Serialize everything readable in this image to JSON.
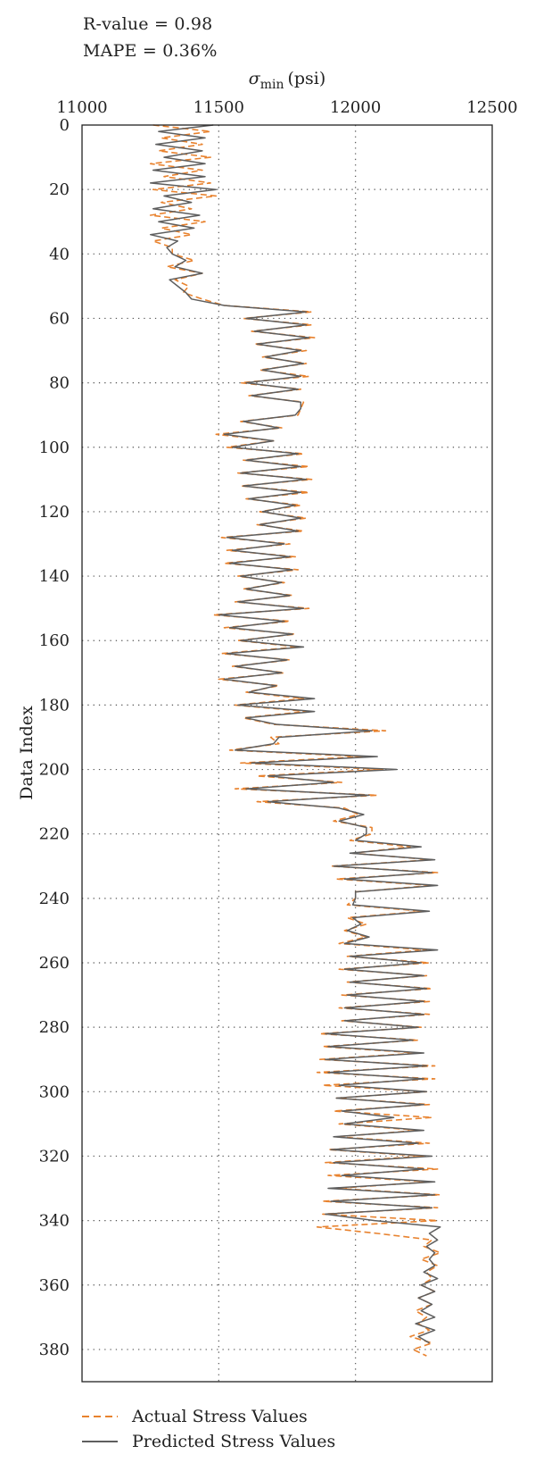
{
  "stats": {
    "r_value": "R-value = 0.98",
    "mape": "MAPE = 0.36%"
  },
  "legend": {
    "actual": "Actual Stress Values",
    "predicted": "Predicted Stress Values"
  },
  "colors": {
    "actual": "#e8822e",
    "predicted": "#5e5e5e",
    "grid": "#555555",
    "frame": "#222222"
  },
  "chart_data": {
    "type": "line",
    "orientation": "vertical-depth",
    "xlabel": {
      "symbol": "σ",
      "subscript": "min",
      "unit": "(psi)"
    },
    "ylabel": "Data Index",
    "xlim": [
      11000,
      12500
    ],
    "ylim": [
      0,
      390
    ],
    "x_axis_position": "top",
    "y_reversed": true,
    "x_ticks": [
      11000,
      11500,
      12000,
      12500
    ],
    "y_ticks": [
      0,
      20,
      40,
      60,
      80,
      100,
      120,
      140,
      160,
      180,
      200,
      220,
      240,
      260,
      280,
      300,
      320,
      340,
      360,
      380
    ],
    "grid": "dotted",
    "legend_position": "bottom-left",
    "series": [
      {
        "name": "Actual Stress Values",
        "style": "dashed",
        "index": [
          0,
          2,
          4,
          6,
          8,
          10,
          12,
          14,
          16,
          18,
          20,
          22,
          24,
          26,
          28,
          30,
          32,
          34,
          36,
          38,
          40,
          42,
          44,
          46,
          48,
          50,
          52,
          54,
          56,
          58,
          60,
          62,
          64,
          66,
          68,
          70,
          72,
          74,
          76,
          78,
          80,
          82,
          84,
          86,
          88,
          90,
          92,
          94,
          96,
          98,
          100,
          102,
          104,
          106,
          108,
          110,
          112,
          114,
          116,
          118,
          120,
          122,
          124,
          126,
          128,
          130,
          132,
          134,
          136,
          138,
          140,
          142,
          144,
          146,
          148,
          150,
          152,
          154,
          156,
          158,
          160,
          162,
          164,
          166,
          168,
          170,
          172,
          174,
          176,
          178,
          180,
          182,
          184,
          186,
          188,
          190,
          192,
          194,
          196,
          198,
          200,
          202,
          204,
          206,
          208,
          210,
          212,
          214,
          216,
          218,
          220,
          222,
          224,
          226,
          228,
          230,
          232,
          234,
          236,
          238,
          240,
          242,
          244,
          246,
          248,
          250,
          252,
          254,
          256,
          258,
          260,
          262,
          264,
          266,
          268,
          270,
          272,
          274,
          276,
          278,
          280,
          282,
          284,
          286,
          288,
          290,
          292,
          294,
          296,
          298,
          300,
          302,
          304,
          306,
          308,
          310,
          312,
          314,
          316,
          318,
          320,
          322,
          324,
          326,
          328,
          330,
          332,
          334,
          336,
          338,
          340,
          342,
          344,
          346,
          348,
          350,
          352,
          354,
          356,
          358,
          360,
          362,
          364,
          366,
          368,
          370,
          372,
          374,
          376,
          378,
          380,
          382,
          384,
          386
        ],
        "values": [
          11260,
          11470,
          11290,
          11440,
          11280,
          11470,
          11250,
          11440,
          11300,
          11470,
          11260,
          11490,
          11290,
          11400,
          11250,
          11450,
          11290,
          11400,
          11260,
          11330,
          11330,
          11410,
          11310,
          11440,
          11340,
          11390,
          11370,
          11440,
          11520,
          11840,
          11590,
          11840,
          11620,
          11850,
          11630,
          11820,
          11660,
          11820,
          11650,
          11830,
          11580,
          11800,
          11610,
          11810,
          11800,
          11790,
          11580,
          11730,
          11490,
          11700,
          11530,
          11810,
          11590,
          11830,
          11570,
          11840,
          11580,
          11830,
          11600,
          11800,
          11650,
          11820,
          11640,
          11810,
          11510,
          11760,
          11530,
          11780,
          11520,
          11790,
          11570,
          11740,
          11590,
          11770,
          11560,
          11830,
          11480,
          11760,
          11520,
          11780,
          11570,
          11790,
          11510,
          11760,
          11550,
          11740,
          11500,
          11720,
          11600,
          11810,
          11560,
          11820,
          11590,
          11700,
          12110,
          11690,
          11720,
          11540,
          12030,
          11580,
          12100,
          11640,
          11950,
          11560,
          12080,
          11640,
          11960,
          12010,
          11920,
          12060,
          12060,
          11980,
          12200,
          11990,
          12280,
          11910,
          12300,
          11930,
          12280,
          12000,
          12000,
          11970,
          12250,
          11970,
          12040,
          11960,
          12040,
          11940,
          12260,
          11970,
          12270,
          11940,
          12260,
          11970,
          12280,
          11950,
          12270,
          11940,
          12270,
          11950,
          12240,
          11870,
          12230,
          11880,
          12230,
          11870,
          12290,
          11860,
          12290,
          11880,
          12260,
          11930,
          12270,
          11920,
          12280,
          11940,
          12230,
          11930,
          12270,
          11900,
          12250,
          11890,
          12300,
          11900,
          12270,
          11930,
          12310,
          11880,
          12300,
          11880,
          12300,
          11860,
          12080,
          12280,
          12250,
          12310,
          12240,
          12300,
          12260,
          12280,
          12240,
          12290,
          12230,
          12280,
          12220,
          12260,
          12230,
          12270,
          12200,
          12280,
          12210,
          12260
        ]
      },
      {
        "name": "Predicted Stress Values",
        "style": "solid",
        "index": [
          0,
          2,
          4,
          6,
          8,
          10,
          12,
          14,
          16,
          18,
          20,
          22,
          24,
          26,
          28,
          30,
          32,
          34,
          36,
          38,
          40,
          42,
          44,
          46,
          48,
          50,
          52,
          54,
          56,
          58,
          60,
          62,
          64,
          66,
          68,
          70,
          72,
          74,
          76,
          78,
          80,
          82,
          84,
          86,
          88,
          90,
          92,
          94,
          96,
          98,
          100,
          102,
          104,
          106,
          108,
          110,
          112,
          114,
          116,
          118,
          120,
          122,
          124,
          126,
          128,
          130,
          132,
          134,
          136,
          138,
          140,
          142,
          144,
          146,
          148,
          150,
          152,
          154,
          156,
          158,
          160,
          162,
          164,
          166,
          168,
          170,
          172,
          174,
          176,
          178,
          180,
          182,
          184,
          186,
          188,
          190,
          192,
          194,
          196,
          198,
          200,
          202,
          204,
          206,
          208,
          210,
          212,
          214,
          216,
          218,
          220,
          222,
          224,
          226,
          228,
          230,
          232,
          234,
          236,
          238,
          240,
          242,
          244,
          246,
          248,
          250,
          252,
          254,
          256,
          258,
          260,
          262,
          264,
          266,
          268,
          270,
          272,
          274,
          276,
          278,
          280,
          282,
          284,
          286,
          288,
          290,
          292,
          294,
          296,
          298,
          300,
          302,
          304,
          306,
          308,
          310,
          312,
          314,
          316,
          318,
          320,
          322,
          324,
          326,
          328,
          330,
          332,
          334,
          336,
          338,
          340,
          342,
          344,
          346,
          348,
          350,
          352,
          354,
          356,
          358,
          360,
          362,
          364,
          366,
          368,
          370,
          372,
          374,
          376,
          378,
          380,
          382,
          384,
          386
        ],
        "values": [
          11480,
          11280,
          11450,
          11270,
          11440,
          11300,
          11450,
          11260,
          11450,
          11250,
          11490,
          11300,
          11400,
          11260,
          11430,
          11280,
          11410,
          11250,
          11350,
          11310,
          11330,
          11380,
          11340,
          11440,
          11320,
          11350,
          11380,
          11400,
          11520,
          11820,
          11600,
          11820,
          11630,
          11830,
          11640,
          11800,
          11670,
          11810,
          11660,
          11800,
          11600,
          11790,
          11620,
          11800,
          11800,
          11780,
          11590,
          11720,
          11520,
          11700,
          11550,
          11790,
          11600,
          11800,
          11580,
          11820,
          11590,
          11800,
          11610,
          11780,
          11660,
          11800,
          11650,
          11790,
          11530,
          11740,
          11550,
          11760,
          11540,
          11770,
          11580,
          11730,
          11600,
          11760,
          11570,
          11810,
          11500,
          11740,
          11540,
          11770,
          11580,
          11810,
          11530,
          11750,
          11560,
          11730,
          11520,
          11710,
          11610,
          11850,
          11570,
          11850,
          11600,
          11710,
          12060,
          11720,
          11700,
          11560,
          12080,
          11620,
          12150,
          11680,
          11920,
          11600,
          12050,
          11680,
          11940,
          12030,
          11940,
          12040,
          12040,
          12000,
          12240,
          11980,
          12290,
          11920,
          12280,
          11960,
          12300,
          12000,
          12000,
          11990,
          12270,
          11990,
          12020,
          11970,
          12050,
          11960,
          12300,
          11980,
          12240,
          11960,
          12250,
          11980,
          12260,
          11970,
          12250,
          11960,
          12250,
          11960,
          12230,
          11890,
          12210,
          11900,
          12250,
          11890,
          12260,
          11900,
          12250,
          11940,
          12260,
          11930,
          12250,
          11950,
          12140,
          11960,
          12250,
          11920,
          12230,
          11910,
          12280,
          11920,
          12250,
          11950,
          12290,
          11900,
          12290,
          11910,
          12280,
          11890,
          12070,
          12310,
          12270,
          12300,
          12260,
          12290,
          12270,
          12290,
          12250,
          12300,
          12240,
          12290,
          12230,
          12280,
          12240,
          12290,
          12220,
          12290,
          12230,
          12270
        ]
      }
    ]
  }
}
